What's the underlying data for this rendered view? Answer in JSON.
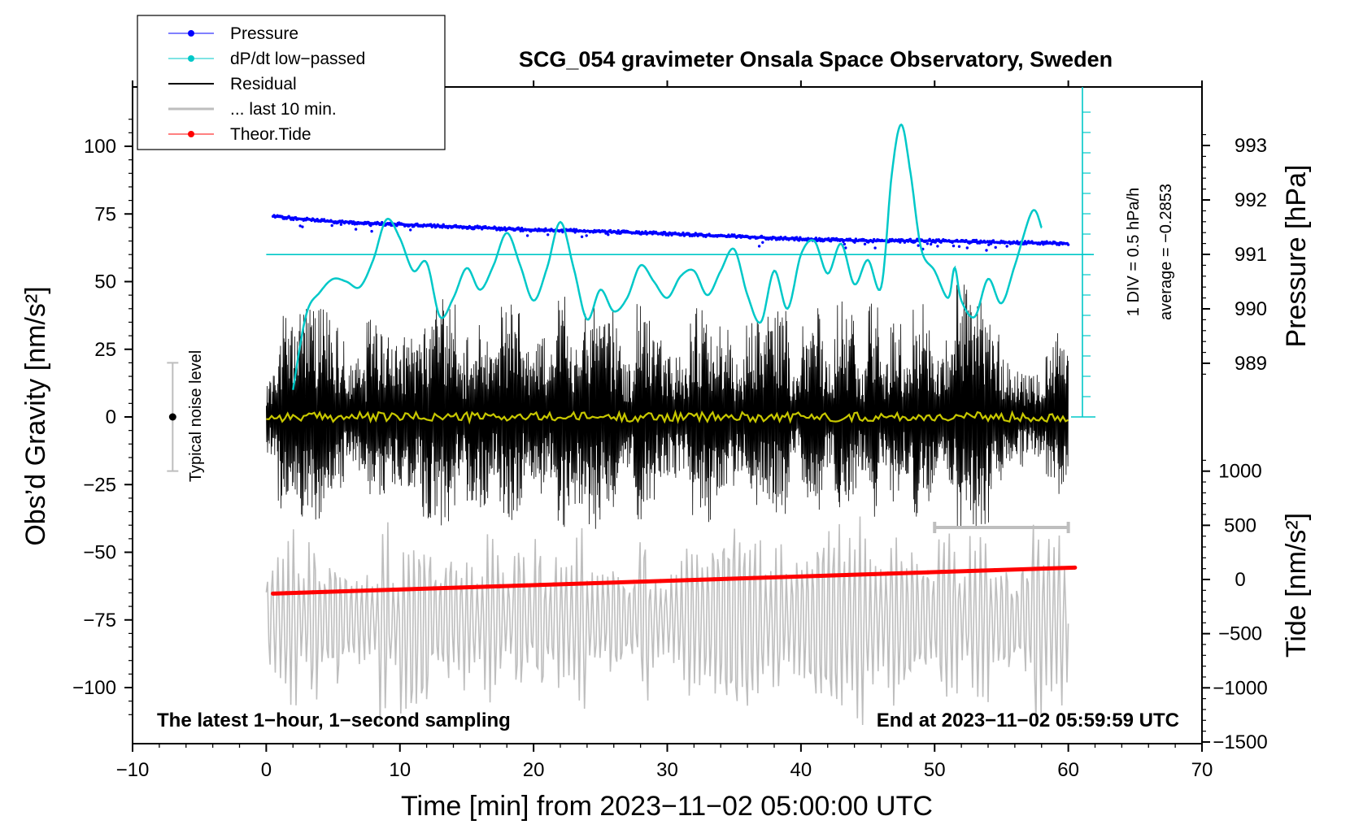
{
  "chart_data": {
    "type": "line",
    "title": "SCG_054 gravimeter Onsala Space Observatory, Sweden",
    "xlabel": "Time [min] from 2023−11−02 05:00:00 UTC",
    "ylabel_left": "Obs’d Gravity [nm/s²]",
    "ylabel_right_top": "Pressure [hPa]",
    "ylabel_right_bottom": "Tide [nm/s²]",
    "xlim": [
      -10,
      70
    ],
    "ylim_left": [
      -120,
      120
    ],
    "x_ticks": [
      "−10",
      "0",
      "10",
      "20",
      "30",
      "40",
      "50",
      "60",
      "70"
    ],
    "x_tick_values": [
      -10,
      0,
      10,
      20,
      30,
      40,
      50,
      60,
      70
    ],
    "y_left_ticks": [
      "100",
      "75",
      "50",
      "25",
      "0",
      "−25",
      "−50",
      "−75",
      "−100"
    ],
    "y_left_tick_values": [
      100,
      75,
      50,
      25,
      0,
      -25,
      -50,
      -75,
      -100
    ],
    "pressure_ticks": [
      "993",
      "992",
      "991",
      "990",
      "989"
    ],
    "pressure_tick_values": [
      993,
      992,
      991,
      990,
      989
    ],
    "tide_ticks": [
      "1000",
      "500",
      "0",
      "−500",
      "−1000",
      "−1500"
    ],
    "tide_tick_values": [
      1000,
      500,
      0,
      -500,
      -1000,
      -1500
    ],
    "legend": [
      {
        "label": "Pressure",
        "color": "#0000ff",
        "style": "line-dot"
      },
      {
        "label": "dP/dt low−passed",
        "color": "#00c8c8",
        "style": "line-dot"
      },
      {
        "label": "Residual",
        "color": "#000000",
        "style": "line"
      },
      {
        "label": "... last 10 min.",
        "color": "#bebebe",
        "style": "thick-line"
      },
      {
        "label": "Theor.Tide",
        "color": "#ff0000",
        "style": "line-dot"
      }
    ],
    "annotations": {
      "noise_label": "Typical noise level",
      "noise_range": [
        -20,
        20
      ],
      "bottom_left": "The latest 1−hour, 1−second sampling",
      "bottom_right": "End at 2023−11−02 05:59:59 UTC",
      "dpdt_scale": "1 DIV = 0.5 hPa/h",
      "dpdt_average": "average = −0.2853",
      "last10_range": [
        50,
        60
      ]
    },
    "series": [
      {
        "name": "Pressure",
        "color": "#0000ff",
        "unit": "hPa",
        "x": [
          0.5,
          5,
          10,
          15,
          20,
          25,
          30,
          35,
          40,
          45,
          50,
          55,
          60
        ],
        "values": [
          991.7,
          991.6,
          991.55,
          991.5,
          991.45,
          991.42,
          991.38,
          991.33,
          991.28,
          991.25,
          991.25,
          991.22,
          991.2
        ]
      },
      {
        "name": "dP/dt low−passed",
        "color": "#00c8c8",
        "unit": "gravity-axis scaled",
        "x": [
          2,
          3,
          4,
          5,
          6,
          7,
          8,
          9,
          10,
          11,
          12,
          13,
          14,
          15,
          16,
          17,
          18,
          19,
          20,
          21,
          22,
          23,
          24,
          25,
          26,
          27,
          28,
          29,
          30,
          31,
          32,
          33,
          34,
          35,
          36,
          37,
          38,
          39,
          40,
          41,
          42,
          43,
          44,
          45,
          46,
          46.8,
          47.5,
          48.2,
          49,
          50,
          51,
          51.5,
          52,
          53,
          54,
          55,
          56,
          57.3,
          58
        ],
        "values": [
          10,
          38,
          46,
          51,
          50,
          48,
          58,
          73,
          66,
          54,
          57,
          37,
          44,
          55,
          47,
          56,
          68,
          56,
          43,
          55,
          72,
          55,
          36,
          47,
          39,
          44,
          56,
          50,
          44,
          52,
          54,
          45,
          54,
          62,
          45,
          35,
          54,
          40,
          60,
          65,
          53,
          64,
          49,
          58,
          48,
          90,
          108,
          90,
          62,
          54,
          44,
          55,
          43,
          37,
          51,
          42,
          56,
          76,
          70
        ]
      },
      {
        "name": "Residual",
        "color": "#000000",
        "unit": "nm/s²",
        "x_range": [
          0,
          60
        ],
        "envelope": [
          -45,
          50
        ]
      },
      {
        "name": "... last 10 min.",
        "color": "#bebebe",
        "unit": "nm/s²",
        "x_range": [
          0,
          60
        ],
        "center": -75,
        "envelope": [
          -110,
          -35
        ]
      },
      {
        "name": "Theor.Tide",
        "color": "#ff0000",
        "unit": "nm/s²",
        "x": [
          0.5,
          60.5
        ],
        "values": [
          -130,
          110
        ]
      }
    ]
  }
}
